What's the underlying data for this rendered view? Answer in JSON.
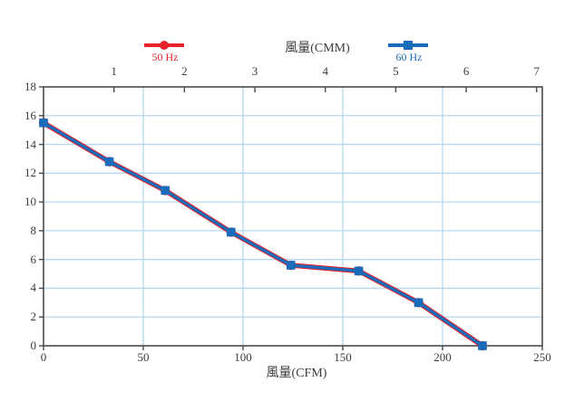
{
  "chart_data": {
    "type": "line",
    "title": "",
    "top_axis": {
      "label": "風量(CMM)",
      "ticks": [
        1,
        2,
        3,
        4,
        5,
        6,
        7
      ],
      "cfm_per_cmm": 35.31
    },
    "x_axis": {
      "label": "風量(CFM)",
      "range": [
        0,
        250
      ],
      "ticks": [
        0,
        50,
        100,
        150,
        200,
        250
      ]
    },
    "y_axis": {
      "label": "",
      "range": [
        0,
        18
      ],
      "ticks": [
        0,
        2,
        4,
        6,
        8,
        10,
        12,
        14,
        16,
        18
      ]
    },
    "grid": {
      "show": true,
      "color": "#b5d8f0",
      "x_lines": [
        50,
        100,
        150,
        200
      ],
      "y_lines": [
        2,
        4,
        6,
        8,
        10,
        12,
        14,
        16
      ]
    },
    "series": [
      {
        "name": "50 Hz",
        "color": "#e8212a",
        "marker": "circle",
        "x": [
          0,
          33,
          61,
          94,
          124,
          158,
          188,
          220
        ],
        "y": [
          15.5,
          12.8,
          10.8,
          7.9,
          5.6,
          5.2,
          3.0,
          0
        ]
      },
      {
        "name": "60 Hz",
        "color": "#1a6cbb",
        "marker": "square",
        "x": [
          0,
          33,
          61,
          94,
          124,
          158,
          188,
          220
        ],
        "y": [
          15.5,
          12.8,
          10.8,
          7.9,
          5.6,
          5.2,
          3.0,
          0
        ]
      }
    ],
    "legend_position": "top",
    "axis_color": "#4a4a4a",
    "text_color": "#3c3c3c",
    "note": "50 Hz and 60 Hz curves are nearly coincident; red 50 Hz curve peeks from under blue 60 Hz curve"
  },
  "legend": {
    "items": [
      {
        "label": "50 Hz",
        "color": "#e8212a",
        "marker": "circle"
      },
      {
        "label": "60 Hz",
        "color": "#1a6cbb",
        "marker": "square"
      }
    ]
  }
}
